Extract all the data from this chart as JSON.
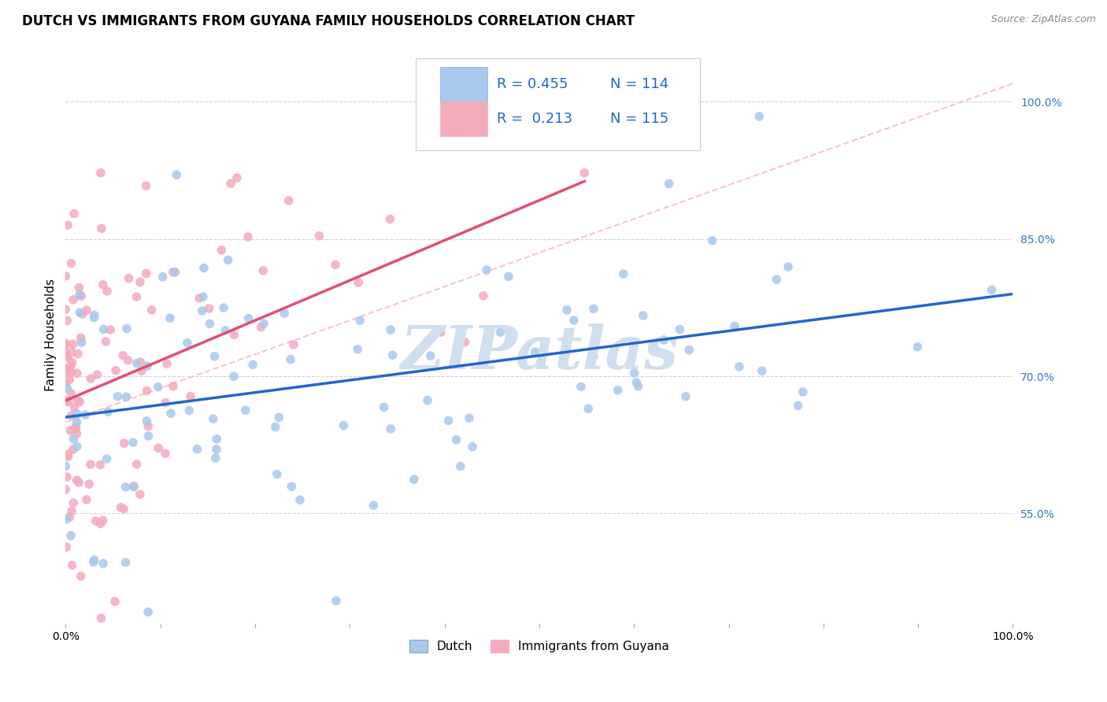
{
  "title": "DUTCH VS IMMIGRANTS FROM GUYANA FAMILY HOUSEHOLDS CORRELATION CHART",
  "source": "Source: ZipAtlas.com",
  "ylabel": "Family Households",
  "ytick_labels": [
    "55.0%",
    "70.0%",
    "85.0%",
    "100.0%"
  ],
  "ytick_values": [
    0.55,
    0.7,
    0.85,
    1.0
  ],
  "legend_r_dutch": "0.455",
  "legend_n_dutch": "114",
  "legend_r_guyana": "0.213",
  "legend_n_guyana": "115",
  "dutch_color": "#A8C8EC",
  "guyana_color": "#F4AABB",
  "dutch_line_color": "#2266CC",
  "guyana_line_color": "#E05070",
  "watermark": "ZIPatlas",
  "watermark_color": "#D0DFF0",
  "background_color": "#FFFFFF",
  "grid_color": "#CCCCDD",
  "title_fontsize": 12,
  "axis_label_fontsize": 11,
  "tick_label_fontsize": 10,
  "legend_fontsize": 13,
  "dutch_R": 0.455,
  "dutch_N": 114,
  "guyana_R": 0.213,
  "guyana_N": 115,
  "xmin": 0.0,
  "xmax": 1.0,
  "ymin": 0.43,
  "ymax": 1.06
}
